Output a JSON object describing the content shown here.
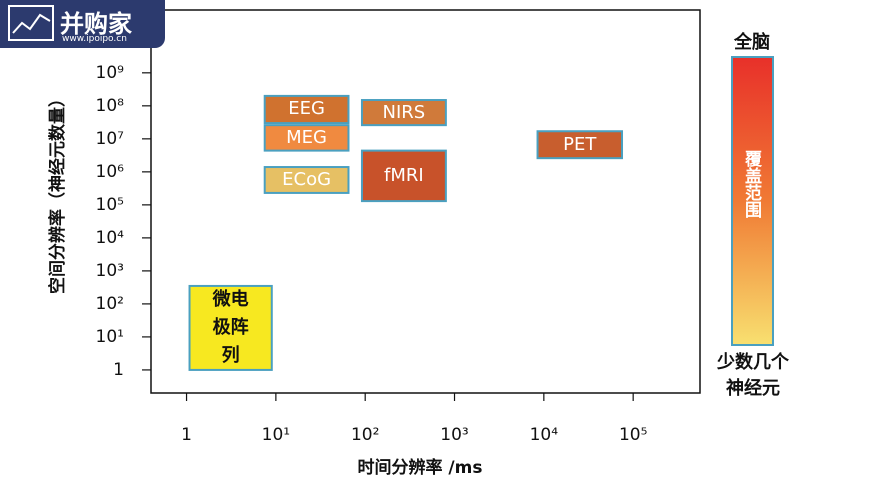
{
  "watermark": {
    "text": "并购家",
    "url": "www.ipoipo.cn"
  },
  "chart_data": {
    "type": "range-rect",
    "xlabel": "时间分辨率 /ms",
    "ylabel": "空间分辨率（神经元数量）",
    "xscale": "log",
    "yscale": "log",
    "xlim": [
      0.4,
      560000
    ],
    "ylim": [
      0.2,
      80000000000
    ],
    "xticks": [
      1,
      {
        "value": 10,
        "label": "10¹"
      },
      {
        "value": 100,
        "label": "10²"
      },
      {
        "value": 1000,
        "label": "10³"
      },
      {
        "value": 10000,
        "label": "10⁴"
      },
      {
        "value": 100000,
        "label": "10⁵"
      }
    ],
    "yticks": [
      1,
      {
        "value": 10,
        "label": "10¹"
      },
      {
        "value": 100,
        "label": "10²"
      },
      {
        "value": 1000,
        "label": "10³"
      },
      {
        "value": 10000,
        "label": "10⁴"
      },
      {
        "value": 100000,
        "label": "10⁵"
      },
      {
        "value": 1000000,
        "label": "10⁶"
      },
      {
        "value": 10000000,
        "label": "10⁷"
      },
      {
        "value": 100000000,
        "label": "10⁸"
      },
      {
        "value": 1000000000,
        "label": "10⁹"
      }
    ],
    "edge_color": "#4aa0c0",
    "series": [
      {
        "name": "EEG",
        "color": "#d0722f",
        "text_color": "#ffffff",
        "x": [
          7.5,
          65
        ],
        "y": [
          30000000,
          200000000
        ]
      },
      {
        "name": "MEG",
        "color": "#f08a40",
        "text_color": "#ffffff",
        "x": [
          7.5,
          65
        ],
        "y": [
          4400000,
          26000000
        ]
      },
      {
        "name": "ECoG",
        "color": "#e6c064",
        "text_color": "#ffffff",
        "x": [
          7.5,
          65
        ],
        "y": [
          230000,
          1400000
        ]
      },
      {
        "name": "NIRS",
        "color": "#d07a3a",
        "text_color": "#ffffff",
        "x": [
          92,
          800
        ],
        "y": [
          26000000,
          150000000
        ]
      },
      {
        "name": "fMRI",
        "color": "#c8522a",
        "text_color": "#ffffff",
        "x": [
          92,
          800
        ],
        "y": [
          130000,
          4400000
        ]
      },
      {
        "name": "PET",
        "color": "#c85e2e",
        "text_color": "#ffffff",
        "x": [
          8500,
          75000
        ],
        "y": [
          2600000,
          17000000
        ]
      },
      {
        "name": "微电极阵列",
        "color": "#f7e820",
        "text_color": "#111111",
        "x": [
          1.08,
          9
        ],
        "y": [
          1,
          350
        ]
      }
    ],
    "colorbar": {
      "top_label": "全脑",
      "title": "覆盖范围",
      "bottom_label": "少数几个神经元",
      "colors": [
        "#e8302a",
        "#f07a34",
        "#f8e070"
      ]
    }
  }
}
